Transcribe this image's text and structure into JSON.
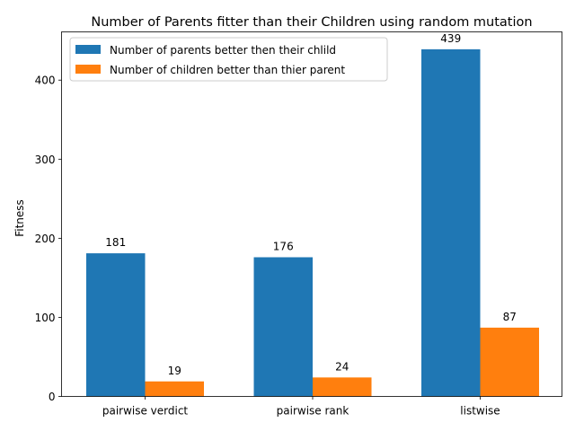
{
  "chart_data": {
    "type": "bar",
    "title": "Number of Parents fitter than their Children  using random mutation",
    "xlabel": "",
    "ylabel": "Fitness",
    "categories": [
      "pairwise verdict",
      "pairwise rank",
      "listwise"
    ],
    "series": [
      {
        "name": "Number of parents better then their chlild",
        "values": [
          181,
          176,
          439
        ],
        "color": "#1f77b4"
      },
      {
        "name": "Number of children better than thier parent",
        "values": [
          19,
          24,
          87
        ],
        "color": "#ff7f0e"
      }
    ],
    "ylim": [
      0,
      461
    ],
    "yticks": [
      0,
      100,
      200,
      300,
      400
    ],
    "legend": "top-left",
    "grid": false
  }
}
